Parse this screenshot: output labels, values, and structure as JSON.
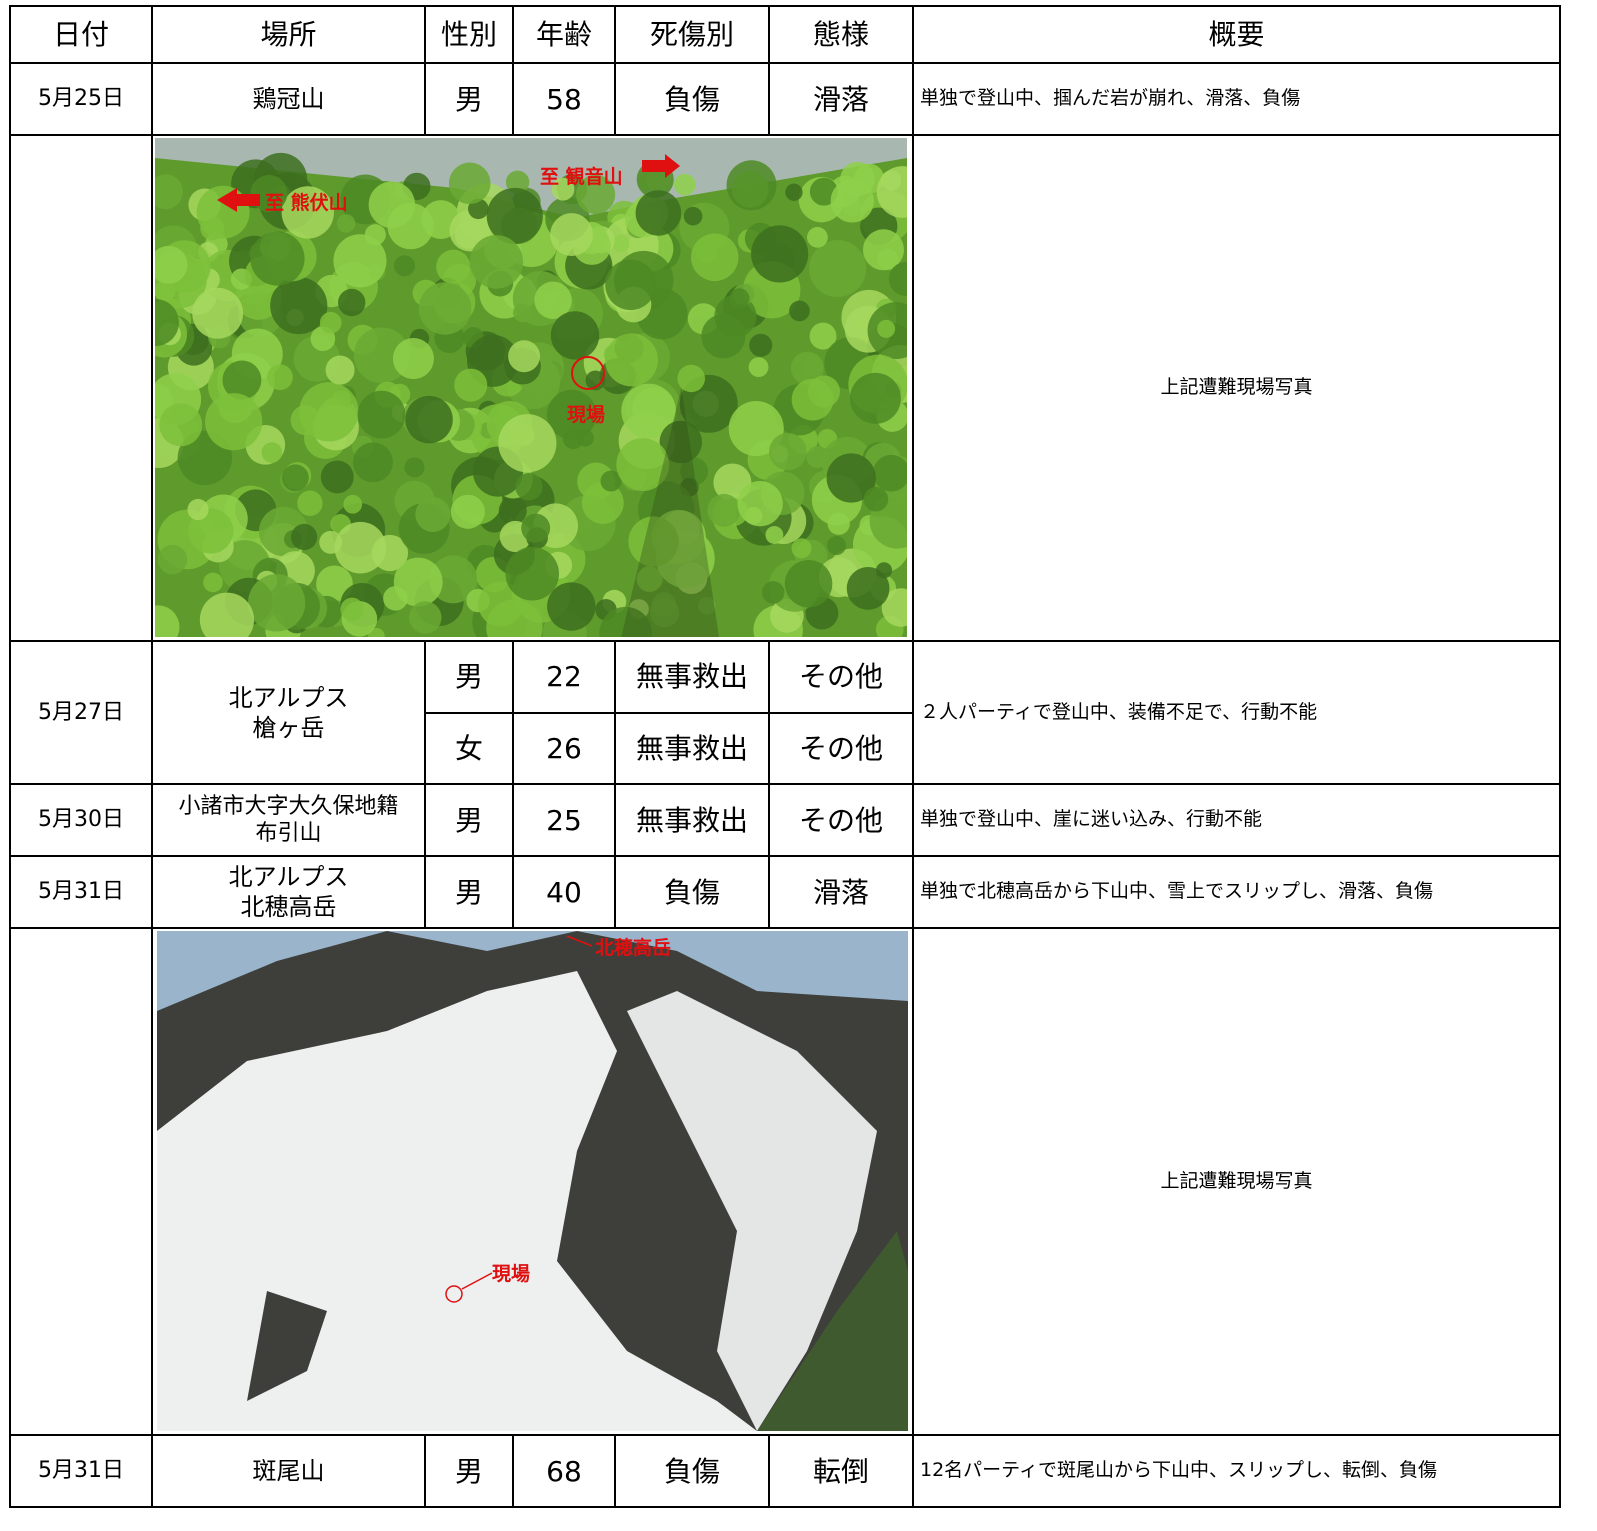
{
  "table": {
    "header": [
      "日付",
      "場所",
      "性別",
      "年齢",
      "死傷別",
      "態様",
      "概要"
    ],
    "rows": [
      {
        "date": "5月25日",
        "place": "鶏冠山",
        "persons": [
          {
            "sex": "男",
            "age": 58,
            "status": "負傷",
            "mode": "滑落"
          }
        ],
        "summary": "単独で登山中、掴んだ岩が崩れ、滑落、負傷"
      },
      {
        "photo": {
          "labels": [
            "至 熊伏山",
            "至 観音山",
            "現場"
          ]
        },
        "summary": "上記遭難現場写真"
      },
      {
        "date": "5月27日",
        "place": "北アルプス\n槍ヶ岳",
        "persons": [
          {
            "sex": "男",
            "age": 22,
            "status": "無事救出",
            "mode": "その他"
          },
          {
            "sex": "女",
            "age": 26,
            "status": "無事救出",
            "mode": "その他"
          }
        ],
        "summary": "２人パーティで登山中、装備不足で、行動不能"
      },
      {
        "date": "5月30日",
        "place": "小諸市大字大久保地籍\n布引山",
        "persons": [
          {
            "sex": "男",
            "age": 25,
            "status": "無事救出",
            "mode": "その他"
          }
        ],
        "summary": "単独で登山中、崖に迷い込み、行動不能"
      },
      {
        "date": "5月31日",
        "place": "北アルプス\n北穂高岳",
        "persons": [
          {
            "sex": "男",
            "age": 40,
            "status": "負傷",
            "mode": "滑落"
          }
        ],
        "summary": "単独で北穂高岳から下山中、雪上でスリップし、滑落、負傷"
      },
      {
        "photo": {
          "labels": [
            "北穂高岳",
            "現場"
          ]
        },
        "summary": "上記遭難現場写真"
      },
      {
        "date": "5月31日",
        "place": "斑尾山",
        "persons": [
          {
            "sex": "男",
            "age": 68,
            "status": "負傷",
            "mode": "転倒"
          }
        ],
        "summary": "12名パーティで斑尾山から下山中、スリップし、転倒、負傷"
      }
    ]
  }
}
